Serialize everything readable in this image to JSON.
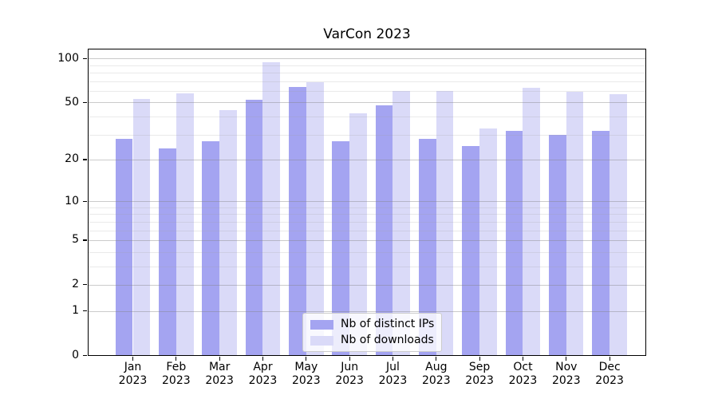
{
  "title": "VarCon 2023",
  "chart_data": {
    "type": "bar",
    "title": "VarCon 2023",
    "categories": [
      "Jan 2023",
      "Feb 2023",
      "Mar 2023",
      "Apr 2023",
      "May 2023",
      "Jun 2023",
      "Jul 2023",
      "Aug 2023",
      "Sep 2023",
      "Oct 2023",
      "Nov 2023",
      "Dec 2023"
    ],
    "x_months": [
      "Jan",
      "Feb",
      "Mar",
      "Apr",
      "May",
      "Jun",
      "Jul",
      "Aug",
      "Sep",
      "Oct",
      "Nov",
      "Dec"
    ],
    "x_year_line": "2023",
    "series": [
      {
        "name": "Nb of distinct IPs",
        "color": "#a4a4f1",
        "values": [
          28,
          24,
          27,
          52,
          64,
          27,
          48,
          28,
          25,
          32,
          30,
          32
        ]
      },
      {
        "name": "Nb of downloads",
        "color": "#dadaf8",
        "values": [
          53,
          58,
          44,
          94,
          69,
          42,
          60,
          60,
          33,
          63,
          59,
          57
        ]
      }
    ],
    "y_scale": "log10(value+1)",
    "y_ticks": [
      0,
      1,
      2,
      5,
      10,
      20,
      50,
      100
    ],
    "y_minor_ticks": [
      3,
      4,
      6,
      7,
      8,
      9,
      30,
      40,
      60,
      70,
      80,
      90
    ],
    "ylim": [
      0,
      114
    ],
    "grid": "horizontal",
    "legend_position": "lower center inside plot",
    "colors": {
      "background": "#ffffff",
      "spine": "#000000",
      "grid_major": "#d2d2d2",
      "grid_minor": "#e9e9e9"
    }
  }
}
